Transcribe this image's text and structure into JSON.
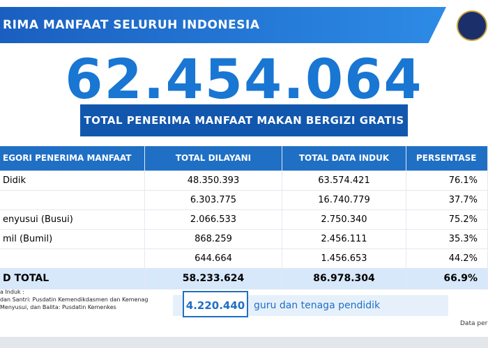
{
  "header": {
    "title": "RIMA MANFAAT SELURUH INDONESIA"
  },
  "hero": {
    "number": "62.454.064",
    "caption": "TOTAL PENERIMA MANFAAT MAKAN BERGIZI GRATIS"
  },
  "table": {
    "columns": [
      "EGORI PENERIMA MANFAAT",
      "TOTAL DILAYANI",
      "TOTAL DATA INDUK",
      "PERSENTASE DIL"
    ],
    "rows": [
      [
        "Didik",
        "48.350.393",
        "63.574.421",
        "76.1%"
      ],
      [
        null,
        "6.303.775",
        "16.740.779",
        "37.7%"
      ],
      [
        "enyusui (Busui)",
        "2.066.533",
        "2.750.340",
        "75.2%"
      ],
      [
        "mil (Bumil)",
        "868.259",
        "2.456.111",
        "35.3%"
      ],
      [
        null,
        "644.664",
        "1.456.653",
        "44.2%"
      ]
    ],
    "total": [
      "D TOTAL",
      "58.233.624",
      "86.978.304",
      "66.9%"
    ]
  },
  "notes": [
    "a Induk :",
    "dan Santri: Pusdatin Kemendikdasmen dan Kemenag",
    "Menyusui, dan Balita: Pusdatin Kemenkes"
  ],
  "extra": {
    "number": "4.220.440",
    "label": "guru dan tenaga pendidik"
  },
  "footer": "Data per"
}
